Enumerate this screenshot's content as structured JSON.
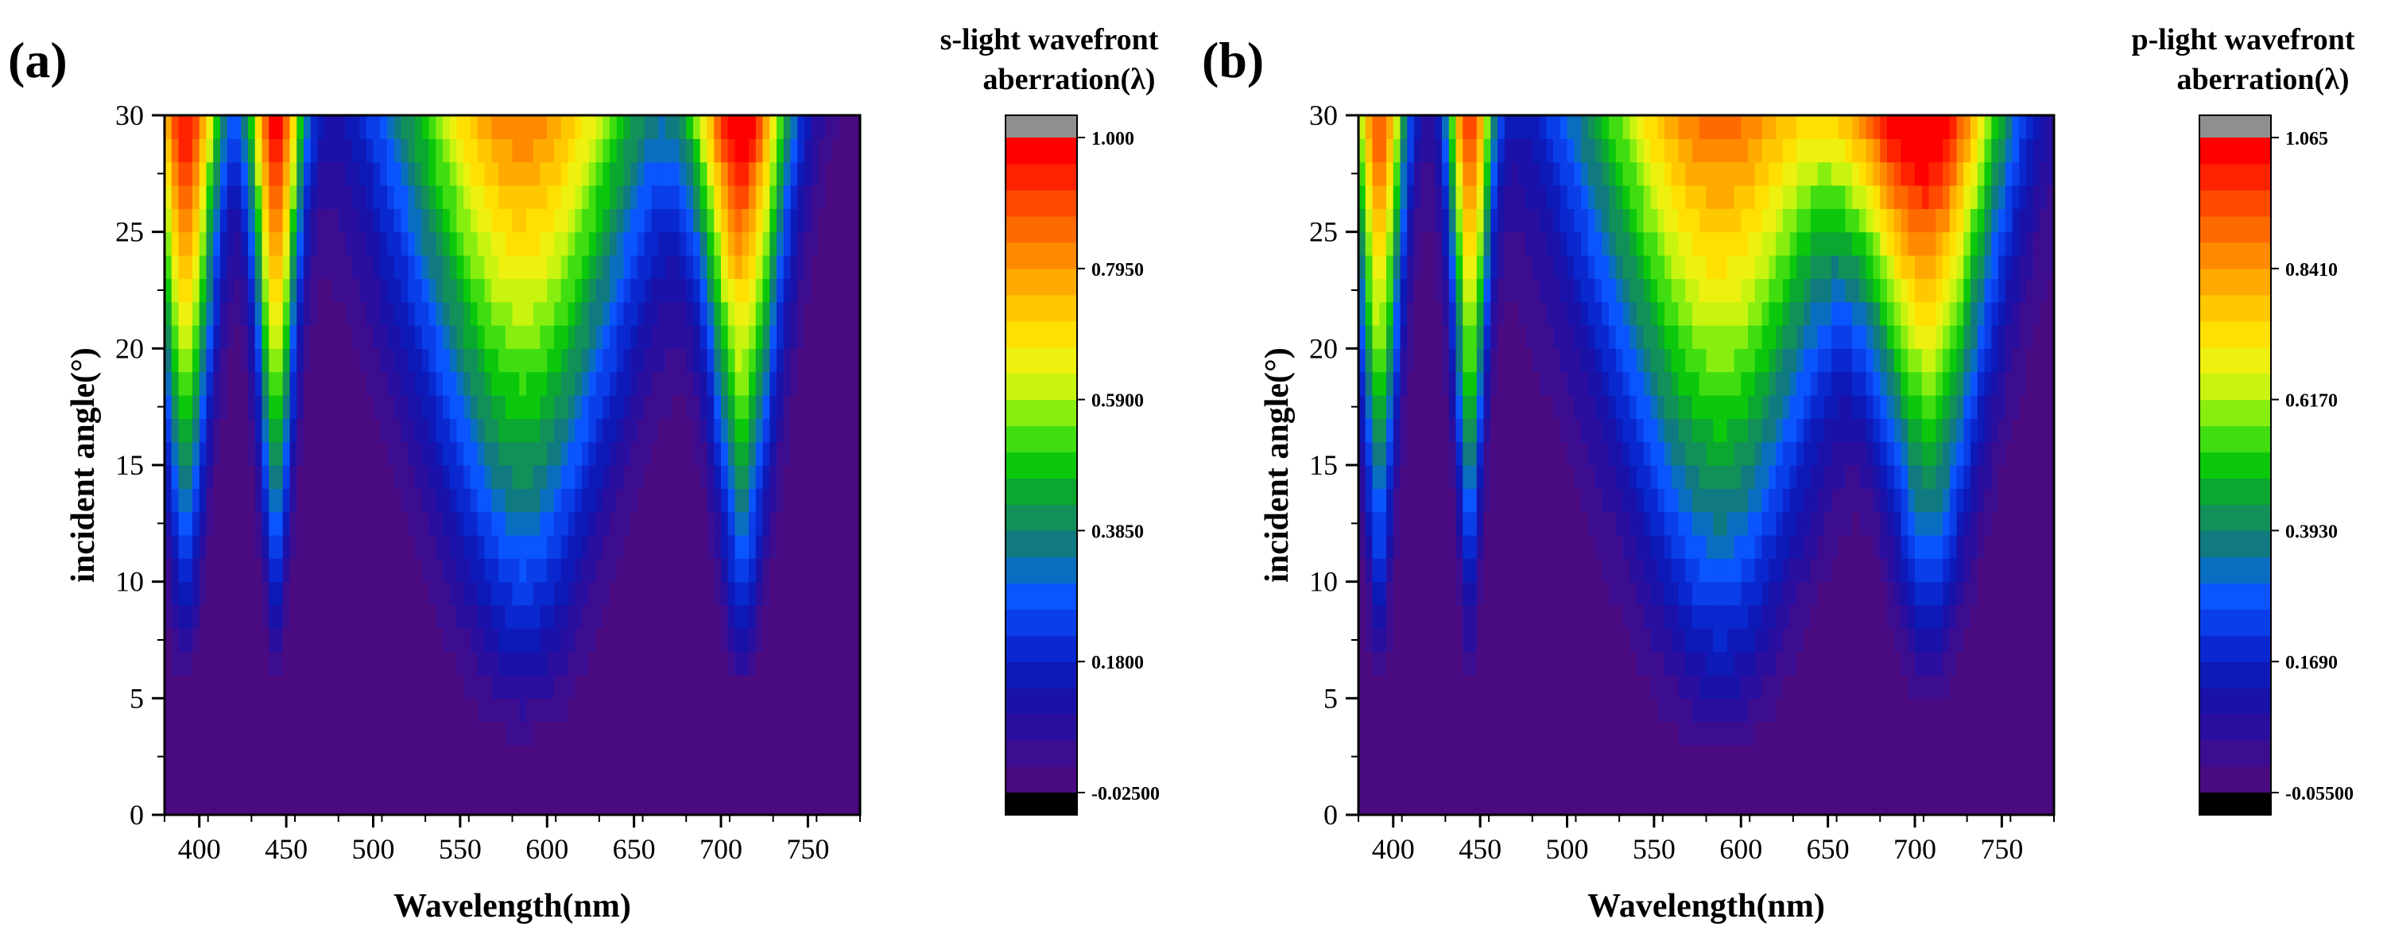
{
  "chart_data": [
    {
      "type": "heatmap",
      "panel_label": "(a)",
      "xlabel": "Wavelength(nm)",
      "ylabel": "incident angle(°)",
      "xlim": [
        380,
        780
      ],
      "ylim": [
        0,
        30
      ],
      "x_ticks": [
        400,
        450,
        500,
        550,
        600,
        650,
        700,
        750
      ],
      "y_ticks": [
        0,
        5,
        10,
        15,
        20,
        25,
        30
      ],
      "colorbar": {
        "title_line1": "s-light wavefront",
        "title_line2": "aberration(λ)",
        "min": -0.025,
        "max": 1.0,
        "tick_labels": [
          "-0.02500",
          "0.1800",
          "0.3850",
          "0.5900",
          "0.7950",
          "1.000"
        ],
        "tick_values": [
          -0.025,
          0.18,
          0.385,
          0.59,
          0.795,
          1.0
        ]
      },
      "peaks": [
        {
          "center_nm": 392,
          "width_nm": 8,
          "onset_angle": 9,
          "peak_value": 1.0
        },
        {
          "center_nm": 444,
          "width_nm": 6,
          "onset_angle": 9,
          "peak_value": 1.0
        },
        {
          "center_nm": 586,
          "width_nm": 26,
          "onset_angle": 5,
          "peak_value": 0.85
        },
        {
          "center_nm": 712,
          "width_nm": 10,
          "onset_angle": 8,
          "peak_value": 1.0
        }
      ]
    },
    {
      "type": "heatmap",
      "panel_label": "(b)",
      "xlabel": "Wavelength(nm)",
      "ylabel": "incident angle(°)",
      "xlim": [
        380,
        780
      ],
      "ylim": [
        0,
        30
      ],
      "x_ticks": [
        400,
        450,
        500,
        550,
        600,
        650,
        700,
        750
      ],
      "y_ticks": [
        0,
        5,
        10,
        15,
        20,
        25,
        30
      ],
      "colorbar": {
        "title_line1": "p-light wavefront",
        "title_line2": "aberration(λ)",
        "min": -0.055,
        "max": 1.065,
        "tick_labels": [
          "-0.05500",
          "0.1690",
          "0.3930",
          "0.6170",
          "0.8410",
          "1.065"
        ],
        "tick_values": [
          -0.055,
          0.169,
          0.393,
          0.617,
          0.841,
          1.065
        ]
      },
      "peaks": [
        {
          "center_nm": 392,
          "width_nm": 6,
          "onset_angle": 9,
          "peak_value": 1.0
        },
        {
          "center_nm": 444,
          "width_nm": 5,
          "onset_angle": 9,
          "peak_value": 1.0
        },
        {
          "center_nm": 588,
          "width_nm": 28,
          "onset_angle": 4,
          "peak_value": 0.95
        },
        {
          "center_nm": 708,
          "width_nm": 16,
          "onset_angle": 7,
          "peak_value": 1.065
        }
      ]
    }
  ]
}
